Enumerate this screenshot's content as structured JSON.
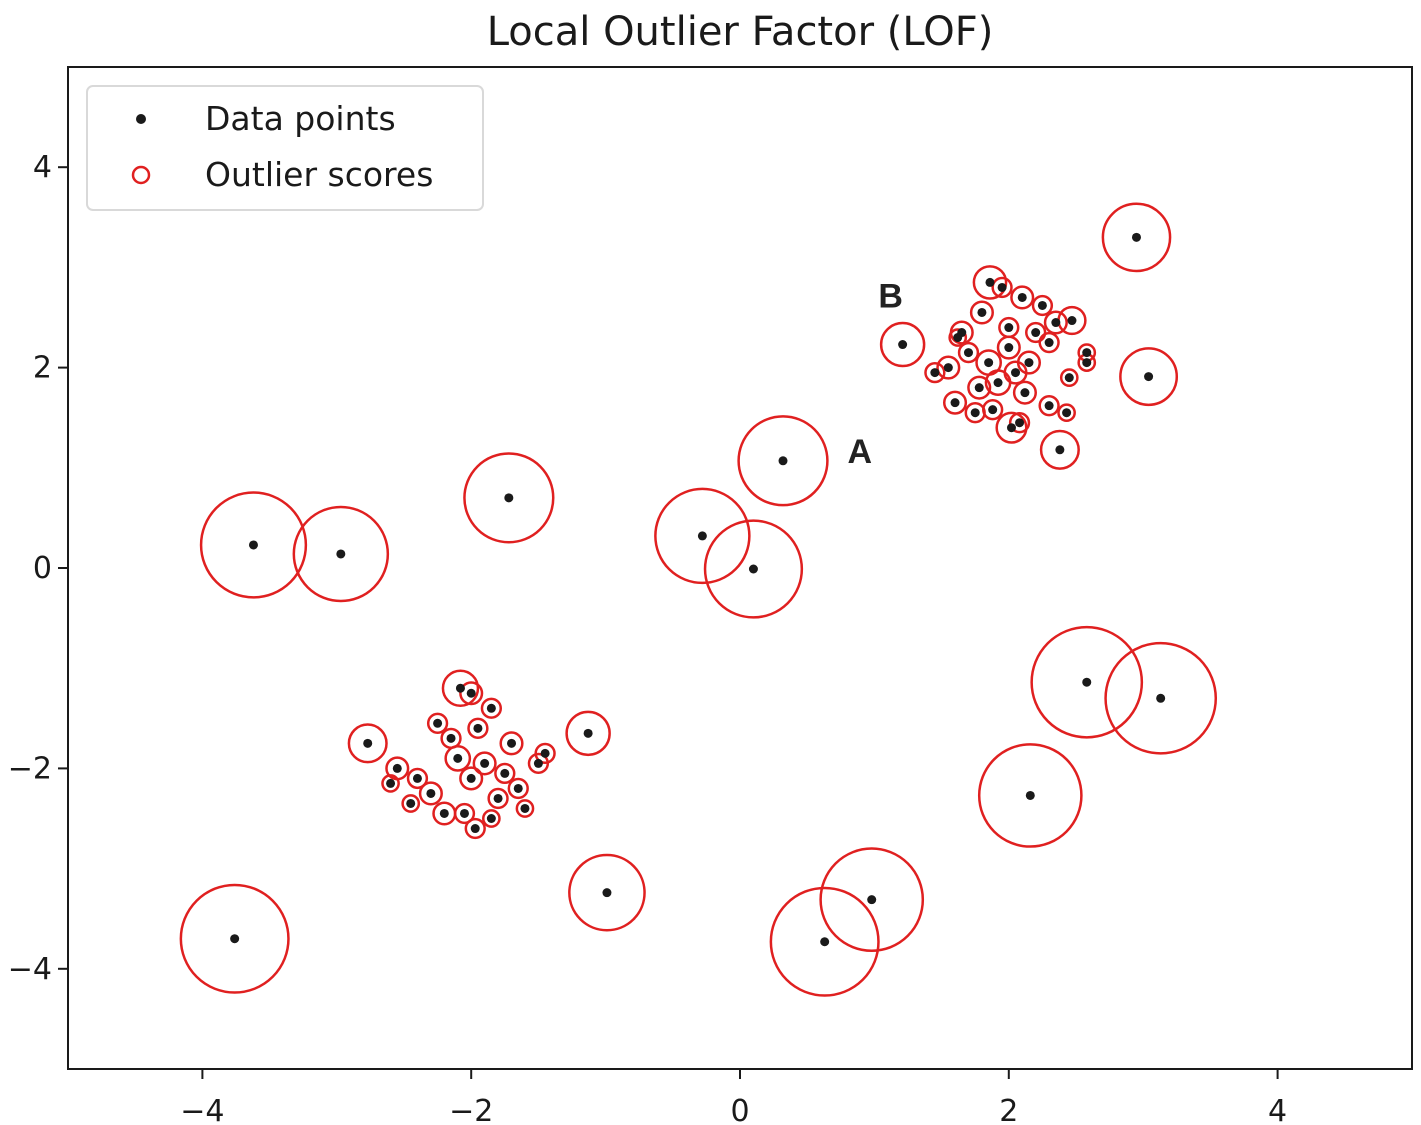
{
  "chart_data": {
    "type": "scatter",
    "title": "Local Outlier Factor (LOF)",
    "xlabel": "",
    "ylabel": "",
    "xlim": [
      -5,
      5
    ],
    "ylim": [
      -5,
      5
    ],
    "xticks": [
      -4,
      -2,
      0,
      2,
      4
    ],
    "yticks": [
      -4,
      -2,
      0,
      2,
      4
    ],
    "xtick_labels": [
      "−4",
      "−2",
      "0",
      "2",
      "4"
    ],
    "ytick_labels": [
      "−4",
      "−2",
      "0",
      "2",
      "4"
    ],
    "grid": false,
    "legend_placement": "upper-left",
    "legend": [
      {
        "label": "Data points",
        "marker": "dot"
      },
      {
        "label": "Outlier scores",
        "marker": "ring"
      }
    ],
    "colors": {
      "points": "#1a1a1a",
      "rings": "#e02020",
      "axes": "#1a1a1a",
      "annotations": "#222222"
    },
    "annotations": [
      {
        "text": "A",
        "x": 0.8,
        "y": 1.05
      },
      {
        "text": "B",
        "x": 1.03,
        "y": 2.6
      }
    ],
    "series": [
      {
        "name": "Data points",
        "points": [
          {
            "x": -3.62,
            "y": 0.23,
            "score": 0.39
          },
          {
            "x": -2.97,
            "y": 0.14,
            "score": 0.35
          },
          {
            "x": -1.72,
            "y": 0.7,
            "score": 0.33
          },
          {
            "x": -0.28,
            "y": 0.32,
            "score": 0.35
          },
          {
            "x": 0.1,
            "y": -0.01,
            "score": 0.36
          },
          {
            "x": 0.32,
            "y": 1.07,
            "score": 0.33
          },
          {
            "x": 2.95,
            "y": 3.3,
            "score": 0.25
          },
          {
            "x": 3.04,
            "y": 1.91,
            "score": 0.21
          },
          {
            "x": 1.21,
            "y": 2.23,
            "score": 0.16
          },
          {
            "x": 2.38,
            "y": 1.18,
            "score": 0.14
          },
          {
            "x": 2.58,
            "y": -1.14,
            "score": 0.41
          },
          {
            "x": 3.13,
            "y": -1.3,
            "score": 0.41
          },
          {
            "x": 2.16,
            "y": -2.27,
            "score": 0.38
          },
          {
            "x": 0.98,
            "y": -3.31,
            "score": 0.38
          },
          {
            "x": 0.63,
            "y": -3.73,
            "score": 0.4
          },
          {
            "x": -0.99,
            "y": -3.24,
            "score": 0.28
          },
          {
            "x": -3.76,
            "y": -3.7,
            "score": 0.4
          },
          {
            "x": -1.13,
            "y": -1.65,
            "score": 0.16
          },
          {
            "x": -2.77,
            "y": -1.75,
            "score": 0.14
          },
          {
            "x": -2.08,
            "y": -1.2,
            "score": 0.13
          },
          {
            "x": 1.86,
            "y": 2.85,
            "score": 0.12
          },
          {
            "x": 2.47,
            "y": 2.47,
            "score": 0.1
          },
          {
            "x": 2.02,
            "y": 1.4,
            "score": 0.11
          },
          {
            "x": 1.95,
            "y": 2.8,
            "score": 0.07
          },
          {
            "x": 1.65,
            "y": 2.35,
            "score": 0.08
          },
          {
            "x": 1.8,
            "y": 2.55,
            "score": 0.08
          },
          {
            "x": 2.1,
            "y": 2.7,
            "score": 0.08
          },
          {
            "x": 2.25,
            "y": 2.62,
            "score": 0.07
          },
          {
            "x": 2.35,
            "y": 2.45,
            "score": 0.08
          },
          {
            "x": 1.55,
            "y": 2.0,
            "score": 0.08
          },
          {
            "x": 1.45,
            "y": 1.95,
            "score": 0.07
          },
          {
            "x": 1.6,
            "y": 1.65,
            "score": 0.08
          },
          {
            "x": 1.75,
            "y": 1.55,
            "score": 0.07
          },
          {
            "x": 1.88,
            "y": 1.58,
            "score": 0.07
          },
          {
            "x": 2.08,
            "y": 1.45,
            "score": 0.07
          },
          {
            "x": 2.3,
            "y": 1.62,
            "score": 0.07
          },
          {
            "x": 2.43,
            "y": 1.55,
            "score": 0.06
          },
          {
            "x": 2.45,
            "y": 1.9,
            "score": 0.06
          },
          {
            "x": 2.58,
            "y": 2.05,
            "score": 0.06
          },
          {
            "x": 2.58,
            "y": 2.15,
            "score": 0.06
          },
          {
            "x": 2.3,
            "y": 2.25,
            "score": 0.07
          },
          {
            "x": 2.15,
            "y": 2.05,
            "score": 0.08
          },
          {
            "x": 2.0,
            "y": 2.2,
            "score": 0.08
          },
          {
            "x": 1.85,
            "y": 2.05,
            "score": 0.09
          },
          {
            "x": 1.7,
            "y": 2.15,
            "score": 0.07
          },
          {
            "x": 1.92,
            "y": 1.85,
            "score": 0.09
          },
          {
            "x": 2.12,
            "y": 1.75,
            "score": 0.08
          },
          {
            "x": 1.78,
            "y": 1.8,
            "score": 0.08
          },
          {
            "x": 2.0,
            "y": 2.4,
            "score": 0.07
          },
          {
            "x": 2.2,
            "y": 2.35,
            "score": 0.07
          },
          {
            "x": 1.62,
            "y": 2.3,
            "score": 0.06
          },
          {
            "x": 2.05,
            "y": 1.95,
            "score": 0.08
          },
          {
            "x": -2.55,
            "y": -2.0,
            "score": 0.08
          },
          {
            "x": -2.4,
            "y": -2.1,
            "score": 0.07
          },
          {
            "x": -2.2,
            "y": -2.45,
            "score": 0.08
          },
          {
            "x": -2.05,
            "y": -2.45,
            "score": 0.07
          },
          {
            "x": -1.97,
            "y": -2.6,
            "score": 0.07
          },
          {
            "x": -1.8,
            "y": -2.3,
            "score": 0.07
          },
          {
            "x": -1.65,
            "y": -2.2,
            "score": 0.07
          },
          {
            "x": -1.6,
            "y": -2.4,
            "score": 0.06
          },
          {
            "x": -1.5,
            "y": -1.95,
            "score": 0.07
          },
          {
            "x": -1.45,
            "y": -1.85,
            "score": 0.07
          },
          {
            "x": -1.7,
            "y": -1.75,
            "score": 0.08
          },
          {
            "x": -1.85,
            "y": -1.4,
            "score": 0.07
          },
          {
            "x": -2.0,
            "y": -1.25,
            "score": 0.08
          },
          {
            "x": -2.25,
            "y": -1.55,
            "score": 0.07
          },
          {
            "x": -2.1,
            "y": -1.9,
            "score": 0.09
          },
          {
            "x": -1.9,
            "y": -1.95,
            "score": 0.08
          },
          {
            "x": -2.3,
            "y": -2.25,
            "score": 0.08
          },
          {
            "x": -2.0,
            "y": -2.1,
            "score": 0.08
          },
          {
            "x": -1.75,
            "y": -2.05,
            "score": 0.07
          },
          {
            "x": -2.15,
            "y": -1.7,
            "score": 0.07
          },
          {
            "x": -1.95,
            "y": -1.6,
            "score": 0.07
          },
          {
            "x": -2.45,
            "y": -2.35,
            "score": 0.06
          },
          {
            "x": -2.6,
            "y": -2.15,
            "score": 0.06
          },
          {
            "x": -1.85,
            "y": -2.5,
            "score": 0.06
          }
        ]
      }
    ]
  }
}
